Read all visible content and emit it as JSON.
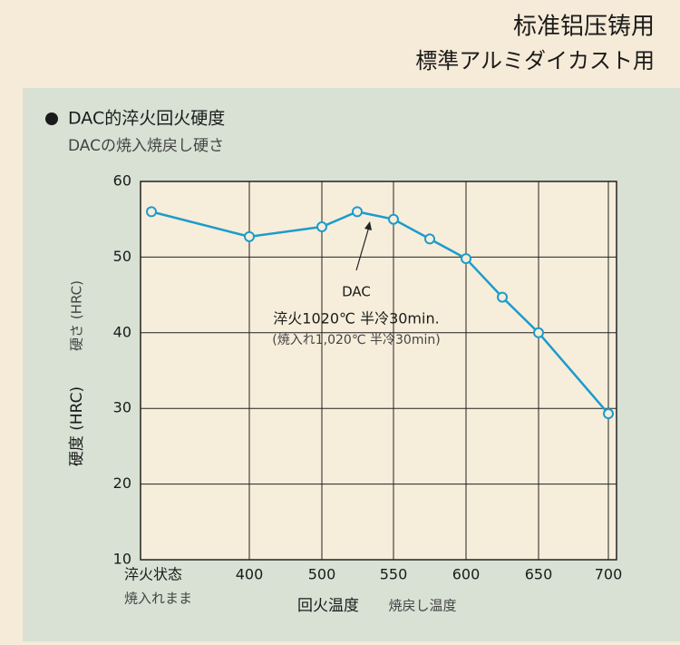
{
  "header": {
    "title": "标准铝压铸用",
    "subtitle": "標準アルミダイカスト用"
  },
  "chart_data": {
    "type": "line",
    "title": "DAC的淬火回火硬度",
    "subtitle": "DACの焼入焼戻し硬さ",
    "y_label": "硬度 (HRC)",
    "y_label_sub": "硬さ (HRC)",
    "x_label": "回火温度",
    "x_label_sub": "焼戻し温度",
    "categories": [
      "淬火状态",
      "400",
      "500",
      null,
      "550",
      null,
      "600",
      null,
      "650",
      "700"
    ],
    "categories_sub": [
      "焼入れまま",
      null,
      null,
      null,
      null,
      null,
      null,
      null,
      null,
      null
    ],
    "series": [
      {
        "name": "DAC",
        "color": "#1b9ccb",
        "values": [
          56,
          52.7,
          54,
          56,
          55,
          52.4,
          49.8,
          44.7,
          40,
          29.3
        ]
      }
    ],
    "annotation": {
      "text": "DAC",
      "line1": "淬火1020℃ 半冷30min.",
      "line2": "(焼入れ1,020℃ 半冷30min)"
    },
    "ylim": [
      10,
      60
    ],
    "yticks": [
      10,
      20,
      30,
      40,
      50,
      60
    ],
    "grid": true
  }
}
